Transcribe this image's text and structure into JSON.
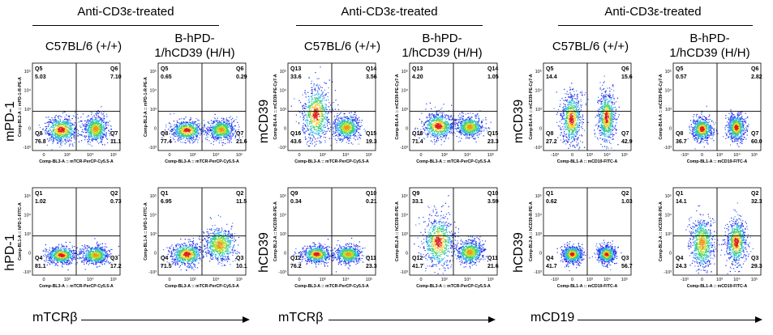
{
  "group_titles": [
    "Anti-CD3ε-treated",
    "Anti-CD3ε-treated",
    "Anti-CD3ε-treated"
  ],
  "column_labels": {
    "wt": "C57BL/6 (+/+)",
    "hh_line1": "B-hPD-",
    "hh_line2": "1/hCD39 (H/H)"
  },
  "row_labels": {
    "g1_top": "mPD-1",
    "g1_bottom": "hPD-1",
    "g2_top": "mCD39",
    "g2_bottom": "hCD39",
    "g3_top": "mCD39",
    "g3_bottom": "hCD39"
  },
  "x_arrow_labels": [
    "mTCRβ",
    "mTCRβ",
    "mCD19"
  ],
  "chart_data": [
    {
      "type": "scatter",
      "group": 1,
      "row": "top",
      "strain": "C57BL/6 (+/+)",
      "x_axis_text": "Comp-BL3-A :: mTCR-PerCP-Cy5.5-A",
      "y_axis_text": "Comp-BL2-A :: mPD-1-R-PE-A",
      "x_ticks": [
        "0",
        "10³",
        "10⁴",
        "10⁵"
      ],
      "y_ticks": [
        "10⁵",
        "10⁴",
        "10³",
        "0",
        "-10³"
      ],
      "quadrants": [
        {
          "name": "Q5",
          "value": "5.03"
        },
        {
          "name": "Q6",
          "value": "7.10"
        },
        {
          "name": "Q8",
          "value": "76.8"
        },
        {
          "name": "Q7",
          "value": "11.1"
        }
      ],
      "populations": [
        {
          "x": 0.95,
          "y": 0.45,
          "spread_x": 0.55,
          "spread_y": 0.45,
          "peak": "hot"
        },
        {
          "x": 3.3,
          "y": 0.5,
          "spread_x": 0.4,
          "spread_y": 0.45,
          "peak": "warm"
        }
      ]
    },
    {
      "type": "scatter",
      "group": 1,
      "row": "top",
      "strain": "B-hPD-1/hCD39 (H/H)",
      "x_axis_text": "Comp-BL3-A :: mTCR-PerCP-Cy5.5-A",
      "y_axis_text": "Comp-BL2-A :: mPD-1-R-PE-A",
      "x_ticks": [
        "0",
        "10³",
        "10⁴",
        "10⁵"
      ],
      "y_ticks": [
        "10⁵",
        "10⁴",
        "10³",
        "0",
        "-10³"
      ],
      "quadrants": [
        {
          "name": "Q5",
          "value": "0.65"
        },
        {
          "name": "Q6",
          "value": "0.29"
        },
        {
          "name": "Q8",
          "value": "77.4"
        },
        {
          "name": "Q7",
          "value": "21.6"
        }
      ],
      "populations": [
        {
          "x": 0.95,
          "y": 0.4,
          "spread_x": 0.55,
          "spread_y": 0.35,
          "peak": "hot"
        },
        {
          "x": 3.3,
          "y": 0.45,
          "spread_x": 0.45,
          "spread_y": 0.35,
          "peak": "warm"
        }
      ]
    },
    {
      "type": "scatter",
      "group": 1,
      "row": "bottom",
      "strain": "C57BL/6 (+/+)",
      "x_axis_text": "Comp-BL3-A :: mTCR-PerCP-Cy5.5-A",
      "y_axis_text": "Comp-BL1-A :: hPD-1-FITC-A",
      "x_ticks": [
        "0",
        "10³",
        "10⁴",
        "10⁵"
      ],
      "y_ticks": [
        "10⁵",
        "10⁴",
        "10³",
        "0",
        "-10³"
      ],
      "quadrants": [
        {
          "name": "Q1",
          "value": "1.02"
        },
        {
          "name": "Q2",
          "value": "0.73"
        },
        {
          "name": "Q4",
          "value": "81.1"
        },
        {
          "name": "Q3",
          "value": "17.2"
        }
      ],
      "populations": [
        {
          "x": 0.95,
          "y": 0.4,
          "spread_x": 0.5,
          "spread_y": 0.3,
          "peak": "hot"
        },
        {
          "x": 3.3,
          "y": 0.4,
          "spread_x": 0.45,
          "spread_y": 0.3,
          "peak": "warm"
        }
      ]
    },
    {
      "type": "scatter",
      "group": 1,
      "row": "bottom",
      "strain": "B-hPD-1/hCD39 (H/H)",
      "x_axis_text": "Comp-BL3-A :: mTCR-PerCP-Cy5.5-A",
      "y_axis_text": "Comp-BL1-A :: hPD-1-FITC-A",
      "x_ticks": [
        "0",
        "10³",
        "10⁴",
        "10⁵"
      ],
      "y_ticks": [
        "10⁵",
        "10⁴",
        "10³",
        "0",
        "-10³"
      ],
      "quadrants": [
        {
          "name": "Q1",
          "value": "6.95"
        },
        {
          "name": "Q2",
          "value": "11.5"
        },
        {
          "name": "Q4",
          "value": "71.5"
        },
        {
          "name": "Q3",
          "value": "10.1"
        }
      ],
      "populations": [
        {
          "x": 0.95,
          "y": 0.45,
          "spread_x": 0.55,
          "spread_y": 0.4,
          "peak": "hot"
        },
        {
          "x": 3.2,
          "y": 1.1,
          "spread_x": 0.55,
          "spread_y": 0.6,
          "peak": "warm"
        }
      ]
    },
    {
      "type": "scatter",
      "group": 2,
      "row": "top",
      "strain": "C57BL/6 (+/+)",
      "x_axis_text": "Comp-BL3-A :: mTCR-PerCP-Cy5.5-A",
      "y_axis_text": "Comp-BL4-A :: mCD39-PE-Cy7-A",
      "x_ticks": [
        "0",
        "10³",
        "10⁴",
        "10⁵"
      ],
      "y_ticks": [
        "10⁵",
        "10⁴",
        "10³",
        "0",
        "-10³"
      ],
      "quadrants": [
        {
          "name": "Q13",
          "value": "33.6"
        },
        {
          "name": "Q14",
          "value": "3.56"
        },
        {
          "name": "Q16",
          "value": "43.6"
        },
        {
          "name": "Q15",
          "value": "19.3"
        }
      ],
      "populations": [
        {
          "x": 0.9,
          "y": 1.5,
          "spread_x": 0.5,
          "spread_y": 1.0,
          "peak": "hot"
        },
        {
          "x": 3.0,
          "y": 0.6,
          "spread_x": 0.45,
          "spread_y": 0.4,
          "peak": "warm"
        }
      ]
    },
    {
      "type": "scatter",
      "group": 2,
      "row": "top",
      "strain": "B-hPD-1/hCD39 (H/H)",
      "x_axis_text": "Comp-BL3-A :: mTCR-PerCP-Cy5.5-A",
      "y_axis_text": "Comp-BL4-A :: mCD39-PE-Cy7-A",
      "x_ticks": [
        "0",
        "10³",
        "10⁴",
        "10⁵"
      ],
      "y_ticks": [
        "10⁵",
        "10⁴",
        "10³",
        "0",
        "-10³"
      ],
      "quadrants": [
        {
          "name": "Q13",
          "value": "4.20"
        },
        {
          "name": "Q14",
          "value": "1.05"
        },
        {
          "name": "Q16",
          "value": "71.4"
        },
        {
          "name": "Q15",
          "value": "23.3"
        }
      ],
      "populations": [
        {
          "x": 0.95,
          "y": 0.7,
          "spread_x": 0.55,
          "spread_y": 0.45,
          "peak": "hot"
        },
        {
          "x": 3.1,
          "y": 0.65,
          "spread_x": 0.45,
          "spread_y": 0.35,
          "peak": "warm"
        }
      ]
    },
    {
      "type": "scatter",
      "group": 2,
      "row": "bottom",
      "strain": "C57BL/6 (+/+)",
      "x_axis_text": "Comp-BL3-A :: mTCR-PerCP-Cy5.5-A",
      "y_axis_text": "Comp-BL2-A :: hCD39-R-PE-A",
      "x_ticks": [
        "0",
        "10³",
        "10⁴",
        "10⁵"
      ],
      "y_ticks": [
        "10⁵",
        "10⁴",
        "10³",
        "0",
        "-10³"
      ],
      "quadrants": [
        {
          "name": "Q9",
          "value": "0.34"
        },
        {
          "name": "Q10",
          "value": "0.21"
        },
        {
          "name": "Q12",
          "value": "76.2"
        },
        {
          "name": "Q11",
          "value": "23.3"
        }
      ],
      "populations": [
        {
          "x": 0.95,
          "y": 0.45,
          "spread_x": 0.5,
          "spread_y": 0.3,
          "peak": "hot"
        },
        {
          "x": 3.1,
          "y": 0.45,
          "spread_x": 0.45,
          "spread_y": 0.3,
          "peak": "warm"
        }
      ]
    },
    {
      "type": "scatter",
      "group": 2,
      "row": "bottom",
      "strain": "B-hPD-1/hCD39 (H/H)",
      "x_axis_text": "Comp-BL3-A :: mTCR-PerCP-Cy5.5-A",
      "y_axis_text": "Comp-BL2-A :: hCD39-R-PE-A",
      "x_ticks": [
        "0",
        "10³",
        "10⁴",
        "10⁵"
      ],
      "y_ticks": [
        "10⁵",
        "10⁴",
        "10³",
        "0",
        "-10³"
      ],
      "quadrants": [
        {
          "name": "Q9",
          "value": "33.1"
        },
        {
          "name": "Q10",
          "value": "3.59"
        },
        {
          "name": "Q12",
          "value": "41.7"
        },
        {
          "name": "Q11",
          "value": "21.6"
        }
      ],
      "populations": [
        {
          "x": 0.95,
          "y": 1.3,
          "spread_x": 0.55,
          "spread_y": 0.9,
          "peak": "hot"
        },
        {
          "x": 3.1,
          "y": 0.6,
          "spread_x": 0.45,
          "spread_y": 0.4,
          "peak": "warm"
        }
      ]
    },
    {
      "type": "scatter",
      "group": 3,
      "row": "top",
      "strain": "C57BL/6 (+/+)",
      "x_axis_text": "Comp-BL1-A :: mCD19-FITC-A",
      "y_axis_text": "Comp-BL4-A :: mCD39-PE-Cy7-A",
      "x_ticks": [
        "-10³",
        "0",
        "10³",
        "10⁴",
        "10⁵"
      ],
      "y_ticks": [
        "10⁵",
        "10⁴",
        "10³",
        "0",
        "-10³"
      ],
      "quadrants": [
        {
          "name": "Q5",
          "value": "14.4"
        },
        {
          "name": "Q6",
          "value": "15.6"
        },
        {
          "name": "Q8",
          "value": "27.2"
        },
        {
          "name": "Q7",
          "value": "42.9"
        }
      ],
      "populations": [
        {
          "x": 0.9,
          "y": 1.2,
          "spread_x": 0.35,
          "spread_y": 0.9,
          "peak": "hot"
        },
        {
          "x": 3.3,
          "y": 1.3,
          "spread_x": 0.3,
          "spread_y": 0.9,
          "peak": "hot"
        }
      ]
    },
    {
      "type": "scatter",
      "group": 3,
      "row": "top",
      "strain": "B-hPD-1/hCD39 (H/H)",
      "x_axis_text": "Comp-BL1-A :: mCD19-FITC-A",
      "y_axis_text": "Comp-BL4-A :: mCD39-PE-Cy7-A",
      "x_ticks": [
        "-10³",
        "0",
        "10³",
        "10⁴",
        "10⁵"
      ],
      "y_ticks": [
        "10⁵",
        "10⁴",
        "10³",
        "0",
        "-10³"
      ],
      "quadrants": [
        {
          "name": "Q5",
          "value": "0.57"
        },
        {
          "name": "Q6",
          "value": "2.82"
        },
        {
          "name": "Q8",
          "value": "36.7"
        },
        {
          "name": "Q7",
          "value": "60.0"
        }
      ],
      "populations": [
        {
          "x": 0.95,
          "y": 0.5,
          "spread_x": 0.35,
          "spread_y": 0.4,
          "peak": "hot"
        },
        {
          "x": 3.3,
          "y": 0.6,
          "spread_x": 0.3,
          "spread_y": 0.45,
          "peak": "hot"
        }
      ]
    },
    {
      "type": "scatter",
      "group": 3,
      "row": "bottom",
      "strain": "C57BL/6 (+/+)",
      "x_axis_text": "Comp-BL1-A :: mCD19-FITC-A",
      "y_axis_text": "Comp-BL2-A :: hCD39-R-PE-A",
      "x_ticks": [
        "-10³",
        "0",
        "10³",
        "10⁴",
        "10⁵"
      ],
      "y_ticks": [
        "10⁵",
        "10⁴",
        "10³",
        "0",
        "-10³"
      ],
      "quadrants": [
        {
          "name": "Q1",
          "value": "0.62"
        },
        {
          "name": "Q2",
          "value": "1.03"
        },
        {
          "name": "Q4",
          "value": "41.7"
        },
        {
          "name": "Q3",
          "value": "56.7"
        }
      ],
      "populations": [
        {
          "x": 0.95,
          "y": 0.45,
          "spread_x": 0.35,
          "spread_y": 0.3,
          "peak": "hot"
        },
        {
          "x": 3.3,
          "y": 0.45,
          "spread_x": 0.3,
          "spread_y": 0.3,
          "peak": "hot"
        }
      ]
    },
    {
      "type": "scatter",
      "group": 3,
      "row": "bottom",
      "strain": "B-hPD-1/hCD39 (H/H)",
      "x_axis_text": "Comp-BL1-A :: mCD19-FITC-A",
      "y_axis_text": "Comp-BL2-A :: hCD39-R-PE-A",
      "x_ticks": [
        "-10³",
        "0",
        "10³",
        "10⁴",
        "10⁵"
      ],
      "y_ticks": [
        "10⁵",
        "10⁴",
        "10³",
        "0",
        "-10³"
      ],
      "quadrants": [
        {
          "name": "Q1",
          "value": "14.1"
        },
        {
          "name": "Q2",
          "value": "32.3"
        },
        {
          "name": "Q4",
          "value": "24.3"
        },
        {
          "name": "Q3",
          "value": "29.3"
        }
      ],
      "populations": [
        {
          "x": 0.95,
          "y": 1.2,
          "spread_x": 0.4,
          "spread_y": 0.9,
          "peak": "warm"
        },
        {
          "x": 3.3,
          "y": 1.3,
          "spread_x": 0.35,
          "spread_y": 0.8,
          "peak": "hot"
        }
      ]
    }
  ]
}
